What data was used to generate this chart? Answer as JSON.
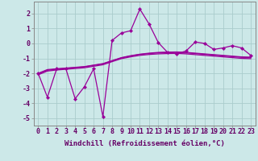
{
  "xlabel": "Windchill (Refroidissement éolien,°C)",
  "x_values": [
    0,
    1,
    2,
    3,
    4,
    5,
    6,
    7,
    8,
    9,
    10,
    11,
    12,
    13,
    14,
    15,
    16,
    17,
    18,
    19,
    20,
    21,
    22,
    23
  ],
  "line_jagged": [
    -2.0,
    -3.6,
    -1.7,
    -1.7,
    -3.7,
    -2.9,
    -1.7,
    -4.9,
    0.2,
    0.7,
    0.85,
    2.3,
    1.3,
    0.05,
    -0.6,
    -0.7,
    -0.5,
    0.1,
    0.0,
    -0.4,
    -0.3,
    -0.15,
    -0.3,
    -0.8
  ],
  "line_smooth1": [
    -2.0,
    -1.75,
    -1.7,
    -1.65,
    -1.6,
    -1.55,
    -1.45,
    -1.35,
    -1.15,
    -0.95,
    -0.82,
    -0.72,
    -0.65,
    -0.6,
    -0.58,
    -0.57,
    -0.6,
    -0.65,
    -0.7,
    -0.75,
    -0.8,
    -0.85,
    -0.9,
    -0.92
  ],
  "line_smooth2": [
    -2.05,
    -1.8,
    -1.72,
    -1.67,
    -1.62,
    -1.57,
    -1.47,
    -1.37,
    -1.17,
    -0.97,
    -0.84,
    -0.74,
    -0.68,
    -0.63,
    -0.61,
    -0.6,
    -0.63,
    -0.68,
    -0.73,
    -0.78,
    -0.83,
    -0.88,
    -0.93,
    -0.95
  ],
  "line_smooth3": [
    -2.1,
    -1.85,
    -1.78,
    -1.73,
    -1.68,
    -1.63,
    -1.53,
    -1.43,
    -1.22,
    -1.02,
    -0.9,
    -0.8,
    -0.74,
    -0.7,
    -0.68,
    -0.67,
    -0.7,
    -0.75,
    -0.8,
    -0.85,
    -0.9,
    -0.95,
    -1.0,
    -1.02
  ],
  "ylim": [
    -5.5,
    2.8
  ],
  "yticks": [
    -5,
    -4,
    -3,
    -2,
    -1,
    0,
    1,
    2
  ],
  "xticks": [
    0,
    1,
    2,
    3,
    4,
    5,
    6,
    7,
    8,
    9,
    10,
    11,
    12,
    13,
    14,
    15,
    16,
    17,
    18,
    19,
    20,
    21,
    22,
    23
  ],
  "line_color": "#990099",
  "bg_color": "#cce8e8",
  "grid_color": "#aacccc",
  "axis_color": "#660066",
  "label_fontsize": 6.5,
  "tick_fontsize": 6.0,
  "linewidth": 0.9,
  "marker": "D",
  "markersize": 2.2
}
